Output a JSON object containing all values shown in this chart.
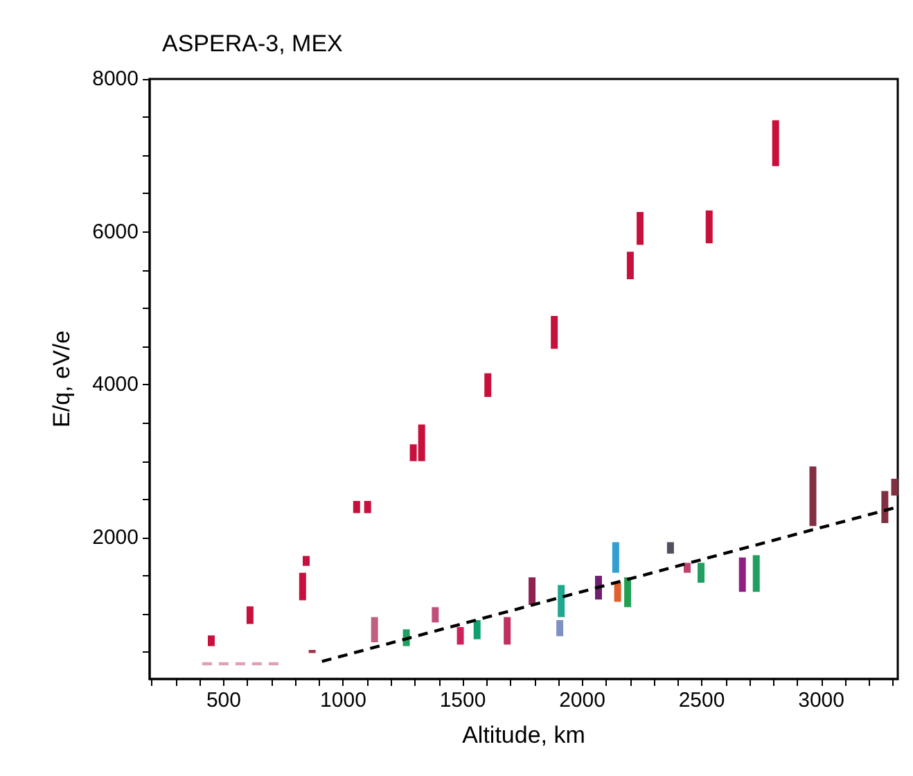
{
  "chart_data": {
    "type": "bar",
    "title": "ASPERA-3, MEX",
    "xlabel": "Altitude, km",
    "ylabel": "E/q, eV/e",
    "xlim": [
      190,
      3320
    ],
    "xticks": [
      {
        "value": 200,
        "label": null
      },
      {
        "value": 300,
        "label": null
      },
      {
        "value": 400,
        "label": null
      },
      500,
      {
        "value": 600,
        "label": null
      },
      {
        "value": 700,
        "label": null
      },
      {
        "value": 800,
        "label": null
      },
      {
        "value": 900,
        "label": null
      },
      1000,
      {
        "value": 1100,
        "label": null
      },
      {
        "value": 1200,
        "label": null
      },
      {
        "value": 1300,
        "label": null
      },
      {
        "value": 1400,
        "label": null
      },
      1500,
      {
        "value": 1600,
        "label": null
      },
      {
        "value": 1700,
        "label": null
      },
      {
        "value": 1800,
        "label": null
      },
      {
        "value": 1900,
        "label": null
      },
      2000,
      {
        "value": 2100,
        "label": null
      },
      {
        "value": 2200,
        "label": null
      },
      {
        "value": 2300,
        "label": null
      },
      {
        "value": 2400,
        "label": null
      },
      2500,
      {
        "value": 2600,
        "label": null
      },
      {
        "value": 2700,
        "label": null
      },
      {
        "value": 2800,
        "label": null
      },
      {
        "value": 2900,
        "label": null
      },
      3000,
      {
        "value": 3100,
        "label": null
      },
      {
        "value": 3200,
        "label": null
      },
      {
        "value": 3300,
        "label": null
      }
    ],
    "ylim": [
      150,
      8000
    ],
    "yticks": [
      {
        "value": 500,
        "label": null
      },
      {
        "value": 1000,
        "label": null
      },
      {
        "value": 1500,
        "label": null
      },
      2000,
      {
        "value": 2500,
        "label": null
      },
      {
        "value": 3000,
        "label": null
      },
      {
        "value": 3500,
        "label": null
      },
      4000,
      {
        "value": 4500,
        "label": null
      },
      {
        "value": 5000,
        "label": null
      },
      {
        "value": 5500,
        "label": null
      },
      6000,
      {
        "value": 6500,
        "label": null
      },
      {
        "value": 7000,
        "label": null
      },
      {
        "value": 7500,
        "label": null
      },
      8000
    ],
    "grid": false,
    "marker": "none",
    "series": [
      {
        "color": "#c8103c",
        "x": [
          448,
          610,
          830,
          845,
          1056,
          1102,
          1293,
          1328,
          1605,
          1883,
          2201,
          2242,
          2531,
          2809
        ],
        "base": [
          580,
          870,
          1180,
          1630,
          2320,
          2320,
          3000,
          3000,
          3840,
          4470,
          5380,
          5830,
          5850,
          6860
        ],
        "values": [
          140,
          230,
          360,
          130,
          160,
          160,
          220,
          480,
          310,
          430,
          360,
          430,
          430,
          600
        ]
      },
      {
        "x": [
          870,
          1131,
          1264,
          1385,
          1490,
          1560,
          1686,
          1790,
          1906,
          1912,
          2068,
          2140,
          2148,
          2190,
          2369,
          2439,
          2497,
          2670,
          2728,
          2965,
          3266,
          3307
        ],
        "base": [
          490,
          630,
          580,
          890,
          600,
          670,
          600,
          1120,
          710,
          960,
          1190,
          1540,
          1160,
          1090,
          1790,
          1540,
          1410,
          1290,
          1290,
          2150,
          2190,
          2550
        ],
        "values": [
          40,
          330,
          220,
          200,
          230,
          250,
          360,
          360,
          210,
          420,
          310,
          400,
          250,
          390,
          150,
          130,
          260,
          450,
          480,
          780,
          420,
          220
        ],
        "colors": [
          "#a0304a",
          "#c06080",
          "#20a060",
          "#c0507a",
          "#d0205a",
          "#10a070",
          "#c03060",
          "#902050",
          "#8090c0",
          "#20a890",
          "#702070",
          "#30a0d0",
          "#e06030",
          "#20a050",
          "#505060",
          "#c04070",
          "#20a060",
          "#902080",
          "#20a060",
          "#803040",
          "#803040",
          "#803040"
        ]
      },
      {
        "type": "line",
        "color": "#e0a0b0",
        "line_style": "dashed",
        "x": [
          410,
          745
        ],
        "values": [
          350,
          350
        ]
      },
      {
        "type": "line",
        "color": "#000000",
        "line_style": "dashed",
        "x": [
          911,
          3307
        ],
        "values": [
          380,
          2390
        ]
      }
    ]
  }
}
